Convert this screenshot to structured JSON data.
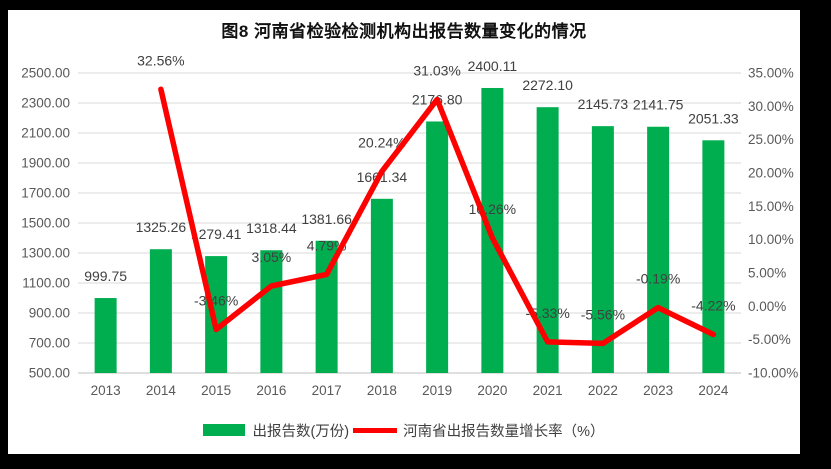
{
  "title": "图8  河南省检验检测机构出报告数量变化的情况",
  "legend": {
    "bar_label": "出报告数(万份)",
    "line_label": "河南省出报告数量增长率（%）"
  },
  "colors": {
    "bar": "#00AE50",
    "line": "#FF0000",
    "grid": "#D9D9D9",
    "axis_line": "#BFBFBF",
    "axis_text": "#595959",
    "label_text": "#404040",
    "frame": "#000000",
    "panel": "#FFFFFF"
  },
  "chart_data": {
    "type": "bar+line combo",
    "title": "图8  河南省检验检测机构出报告数量变化的情况",
    "categories": [
      "2013",
      "2014",
      "2015",
      "2016",
      "2017",
      "2018",
      "2019",
      "2020",
      "2021",
      "2022",
      "2023",
      "2024"
    ],
    "series": [
      {
        "name": "出报告数(万份)",
        "type": "bar",
        "axis": "left",
        "values": [
          999.75,
          1325.26,
          1279.41,
          1318.44,
          1381.66,
          1661.34,
          2176.8,
          2400.11,
          2272.1,
          2145.73,
          2141.75,
          2051.33
        ],
        "data_labels": [
          "999.75",
          "1325.26",
          "1279.41",
          "1318.44",
          "1381.66",
          "1661.34",
          "2176.80",
          "2400.11",
          "2272.10",
          "2145.73",
          "2141.75",
          "2051.33"
        ]
      },
      {
        "name": "河南省出报告数量增长率（%）",
        "type": "line",
        "axis": "right",
        "values": [
          null,
          32.56,
          -3.46,
          3.05,
          4.79,
          20.24,
          31.03,
          10.26,
          -5.33,
          -5.56,
          -0.19,
          -4.22
        ],
        "data_labels": [
          null,
          "32.56%",
          "-3.46%",
          "3.05%",
          "4.79%",
          "20.24%",
          "31.03%",
          "10.26%",
          "-5.33%",
          "-5.56%",
          "-0.19%",
          "-4.22%"
        ]
      }
    ],
    "left_axis": {
      "min": 500,
      "max": 2500,
      "step": 200,
      "tick_labels": [
        "2500.00",
        "2300.00",
        "2100.00",
        "1900.00",
        "1700.00",
        "1500.00",
        "1300.00",
        "1100.00",
        "900.00",
        "700.00",
        "500.00"
      ]
    },
    "right_axis": {
      "min": -10,
      "max": 35,
      "step": 5,
      "tick_labels": [
        "35.00%",
        "30.00%",
        "25.00%",
        "20.00%",
        "15.00%",
        "10.00%",
        "5.00%",
        "0.00%",
        "-5.00%",
        "-10.00%"
      ]
    },
    "grid": true,
    "legend_position": "bottom"
  }
}
